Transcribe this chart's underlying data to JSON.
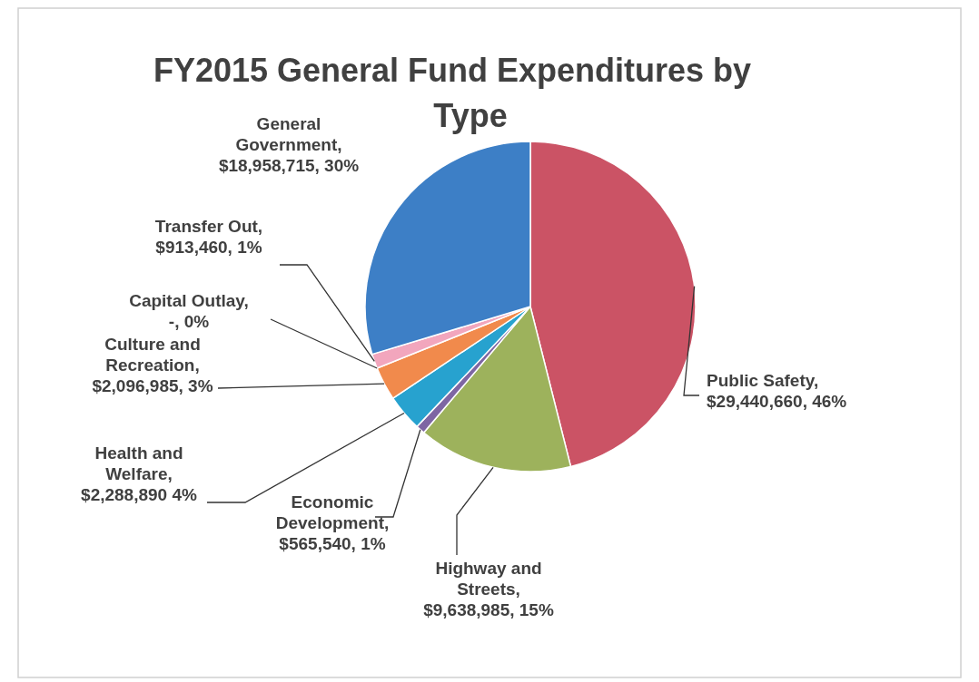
{
  "chart_data": {
    "type": "pie",
    "title": "FY2015 General Fund Expenditures by Type",
    "categories": [
      "Public Safety",
      "Highway and Streets",
      "Economic Development",
      "Health and Welfare",
      "Culture and Recreation",
      "Capital Outlay",
      "Transfer Out",
      "General Government"
    ],
    "values": [
      29440660,
      9638985,
      565540,
      2288890,
      2096985,
      0,
      913460,
      18958715
    ],
    "value_labels": [
      ", $29,440,660, 46%",
      ", $9,638,985, 15%",
      ", $565,540, 1%",
      ", $2,288,890 4%",
      ", $2,096,985, 3%",
      ", -, 0%",
      ", $913,460, 1%",
      ", $18,958,715, 30%"
    ],
    "colors": [
      "#cb5365",
      "#9db25c",
      "#7e66a3",
      "#27a2cf",
      "#f18a4c",
      "#4f81bd",
      "#f2a6bd",
      "#3d7fc6"
    ],
    "legend": false
  }
}
